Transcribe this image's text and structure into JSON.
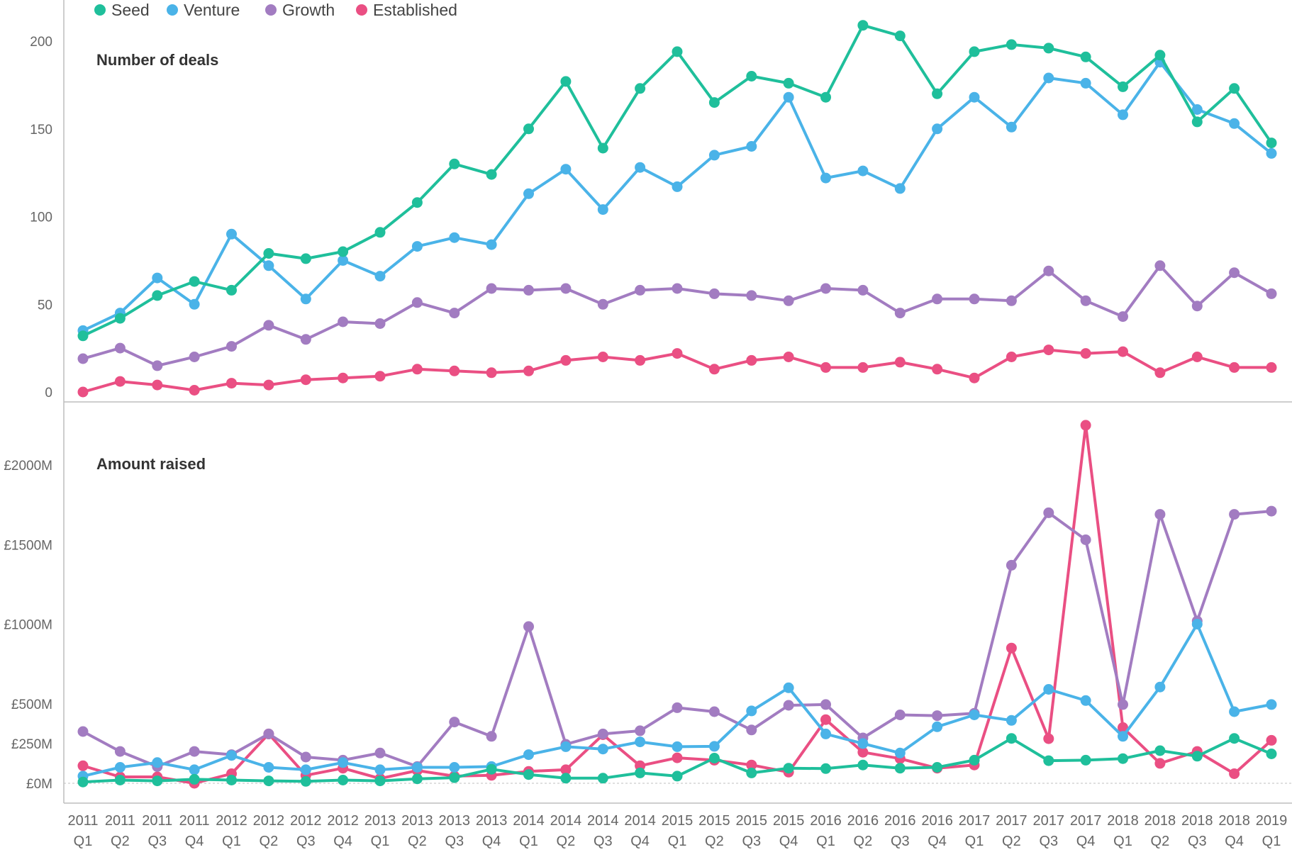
{
  "legend": [
    {
      "name": "Seed",
      "color": "#1fbf9b"
    },
    {
      "name": "Venture",
      "color": "#4ab3e8"
    },
    {
      "name": "Growth",
      "color": "#a27cc1"
    },
    {
      "name": "Established",
      "color": "#ea4f83"
    }
  ],
  "x_years": [
    "2011",
    "2011",
    "2011",
    "2011",
    "2012",
    "2012",
    "2012",
    "2012",
    "2013",
    "2013",
    "2013",
    "2013",
    "2014",
    "2014",
    "2014",
    "2014",
    "2015",
    "2015",
    "2015",
    "2015",
    "2016",
    "2016",
    "2016",
    "2016",
    "2017",
    "2017",
    "2017",
    "2017",
    "2018",
    "2018",
    "2018",
    "2018",
    "2019"
  ],
  "x_quarters": [
    "Q1",
    "Q2",
    "Q3",
    "Q4",
    "Q1",
    "Q2",
    "Q3",
    "Q4",
    "Q1",
    "Q2",
    "Q3",
    "Q4",
    "Q1",
    "Q2",
    "Q3",
    "Q4",
    "Q1",
    "Q2",
    "Q3",
    "Q4",
    "Q1",
    "Q2",
    "Q3",
    "Q4",
    "Q1",
    "Q2",
    "Q3",
    "Q4",
    "Q1",
    "Q2",
    "Q3",
    "Q4",
    "Q1"
  ],
  "chart_data": [
    {
      "type": "line",
      "title": "Number of deals",
      "ylim": [
        0,
        220
      ],
      "y_ticks": [
        0,
        50,
        100,
        150,
        200
      ],
      "y_tick_labels": [
        "0",
        "50",
        "100",
        "150",
        "200"
      ],
      "grid": false,
      "legend_position": "top-left",
      "series": [
        {
          "name": "Seed",
          "values": [
            32,
            42,
            55,
            63,
            58,
            79,
            76,
            80,
            91,
            108,
            130,
            124,
            150,
            177,
            139,
            173,
            194,
            165,
            180,
            176,
            168,
            209,
            203,
            170,
            194,
            198,
            196,
            191,
            174,
            192,
            154,
            173,
            142
          ]
        },
        {
          "name": "Venture",
          "values": [
            35,
            45,
            65,
            50,
            90,
            72,
            53,
            75,
            66,
            83,
            88,
            84,
            113,
            127,
            104,
            128,
            117,
            135,
            140,
            168,
            122,
            126,
            116,
            150,
            168,
            151,
            179,
            176,
            158,
            188,
            161,
            153,
            136
          ]
        },
        {
          "name": "Growth",
          "values": [
            19,
            25,
            15,
            20,
            26,
            38,
            30,
            40,
            39,
            51,
            45,
            59,
            58,
            59,
            50,
            58,
            59,
            56,
            55,
            52,
            59,
            58,
            45,
            53,
            53,
            52,
            69,
            52,
            43,
            72,
            49,
            68,
            56
          ]
        },
        {
          "name": "Established",
          "values": [
            0,
            6,
            4,
            1,
            5,
            4,
            7,
            8,
            9,
            13,
            12,
            11,
            12,
            18,
            20,
            18,
            22,
            13,
            18,
            20,
            14,
            14,
            17,
            13,
            8,
            20,
            24,
            22,
            23,
            11,
            20,
            14,
            14
          ]
        }
      ]
    },
    {
      "type": "line",
      "title": "Amount raised",
      "ylim": [
        0,
        2300
      ],
      "y_ticks": [
        0,
        250,
        500,
        1000,
        1500,
        2000
      ],
      "y_tick_labels": [
        "£0M",
        "£250M",
        "£500M",
        "£1000M",
        "£1500M",
        "£2000M"
      ],
      "grid": false,
      "legend_position": "top-left",
      "series": [
        {
          "name": "Seed",
          "values": [
            8,
            20,
            15,
            25,
            20,
            15,
            12,
            20,
            15,
            28,
            35,
            88,
            55,
            32,
            32,
            65,
            45,
            158,
            65,
            95,
            92,
            115,
            95,
            100,
            145,
            282,
            142,
            145,
            155,
            205,
            170,
            282,
            185
          ]
        },
        {
          "name": "Venture",
          "values": [
            45,
            100,
            130,
            85,
            175,
            100,
            85,
            130,
            85,
            100,
            100,
            105,
            180,
            230,
            215,
            260,
            230,
            232,
            455,
            600,
            310,
            250,
            190,
            355,
            430,
            395,
            590,
            520,
            295,
            605,
            1000,
            450,
            495
          ]
        },
        {
          "name": "Growth",
          "values": [
            325,
            200,
            105,
            200,
            180,
            310,
            165,
            145,
            190,
            105,
            385,
            295,
            985,
            245,
            310,
            330,
            475,
            450,
            335,
            490,
            495,
            285,
            430,
            425,
            440,
            1370,
            1700,
            1530,
            495,
            1690,
            1020,
            1690,
            1710
          ]
        },
        {
          "name": "Established",
          "values": [
            110,
            40,
            40,
            0,
            60,
            310,
            50,
            95,
            30,
            80,
            45,
            50,
            75,
            85,
            305,
            110,
            160,
            145,
            115,
            70,
            400,
            195,
            155,
            95,
            115,
            850,
            280,
            2250,
            350,
            125,
            200,
            60,
            270
          ]
        }
      ]
    }
  ]
}
